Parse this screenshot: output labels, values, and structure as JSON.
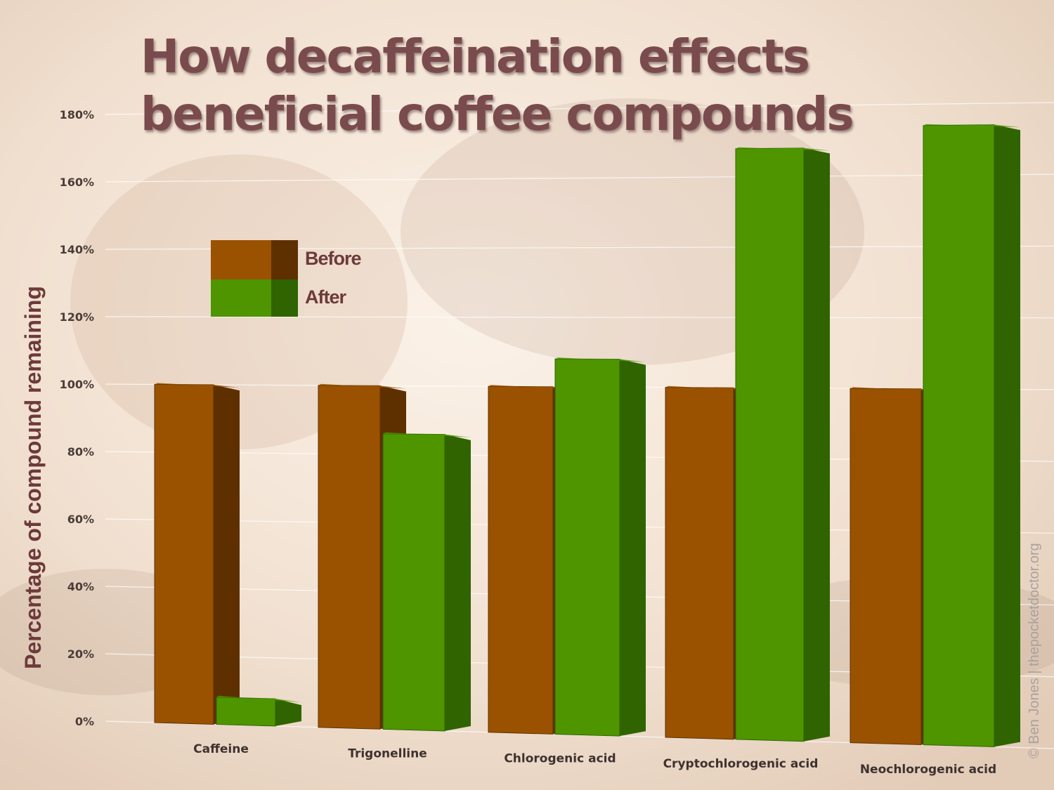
{
  "chart_data": {
    "type": "bar",
    "title_lines": [
      "How decaffeination effects",
      "beneficial coffee compounds"
    ],
    "ylabel": "Percentage of compound remaining",
    "xlabel": "",
    "y_ticks": [
      "0%",
      "20%",
      "40%",
      "60%",
      "80%",
      "100%",
      "120%",
      "140%",
      "160%",
      "180%"
    ],
    "ylim": [
      0,
      180
    ],
    "y_unit": "%",
    "grid": true,
    "legend_position": "top-left",
    "categories": [
      "Caffeine",
      "Trigonelline",
      "Chlorogenic acid",
      "Cryptochlorogenic acid",
      "Neochlorogenic acid"
    ],
    "series": [
      {
        "name": "Before",
        "values": [
          100,
          100,
          100,
          100,
          100
        ],
        "color": "#9a5200",
        "side_color": "#5e3000"
      },
      {
        "name": "After",
        "values": [
          8,
          86,
          108,
          168,
          174
        ],
        "color": "#4e9500",
        "side_color": "#2f6400"
      }
    ]
  },
  "credit": "© Ben Jones | thepocketdoctor.org"
}
